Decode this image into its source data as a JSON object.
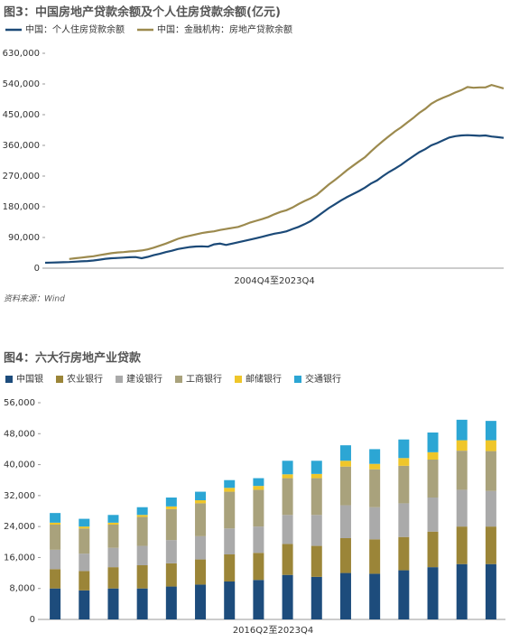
{
  "chart_data": [
    {
      "type": "line",
      "title": "图3：中国房地产贷款余额及个人住房贷款余额(亿元)",
      "x_label": "2004Q4至2023Q4",
      "source": "资料来源：Wind",
      "categories": [
        null,
        null,
        null,
        null,
        null,
        null,
        null,
        null,
        null,
        null,
        null,
        null,
        null,
        null,
        null,
        null,
        null,
        null,
        null,
        null,
        null,
        null,
        null,
        null,
        null,
        null,
        null,
        null,
        null,
        null,
        null,
        null,
        null,
        null,
        null,
        null,
        null,
        null,
        null,
        null,
        null,
        null,
        null,
        null,
        null,
        null,
        null,
        null,
        null,
        null,
        null,
        null,
        null,
        null,
        null,
        null,
        null,
        null,
        null,
        null,
        null,
        null,
        null,
        null,
        null,
        null,
        null,
        null,
        null,
        null,
        null,
        null,
        null,
        null,
        null,
        null,
        null
      ],
      "series": [
        {
          "name": "中国：个人住房贷款余额",
          "color": "#1c4a78",
          "values": [
            16000,
            16500,
            17000,
            17500,
            18000,
            19000,
            20000,
            21000,
            22500,
            25000,
            27500,
            29000,
            30000,
            31000,
            32000,
            32500,
            29000,
            33000,
            38000,
            42000,
            47000,
            51000,
            56000,
            59000,
            62000,
            63500,
            64000,
            63000,
            70000,
            72000,
            68000,
            72000,
            76000,
            80000,
            84000,
            88000,
            92000,
            97000,
            101000,
            104000,
            108000,
            115000,
            121000,
            129000,
            138000,
            150000,
            163000,
            176000,
            187000,
            198000,
            208000,
            217000,
            226000,
            236000,
            248000,
            257000,
            270000,
            282000,
            292000,
            303000,
            316000,
            328000,
            340000,
            349000,
            360000,
            367000,
            375000,
            383000,
            387000,
            389000,
            390000,
            389000,
            388000,
            389000,
            386000,
            384000,
            382000
          ]
        },
        {
          "name": "中国：金融机构：房地产贷款余额",
          "color": "#9c8a4e",
          "values": [
            null,
            null,
            null,
            null,
            27000,
            29000,
            31000,
            33000,
            35000,
            38000,
            41000,
            44000,
            46000,
            47000,
            49000,
            50000,
            52000,
            55000,
            60000,
            66000,
            72000,
            79000,
            86000,
            91000,
            95000,
            99000,
            103000,
            106000,
            108000,
            112000,
            115000,
            118000,
            121000,
            127000,
            134000,
            139000,
            144000,
            150000,
            158000,
            165000,
            170000,
            178000,
            188000,
            197000,
            205000,
            215000,
            230000,
            245000,
            258000,
            272000,
            287000,
            300000,
            313000,
            325000,
            342000,
            358000,
            373000,
            387000,
            401000,
            413000,
            427000,
            440000,
            455000,
            467000,
            482000,
            492000,
            500000,
            507000,
            515000,
            522000,
            531000,
            529000,
            530000,
            530000,
            537000,
            532000,
            527000
          ]
        }
      ],
      "ylim": [
        0,
        630000
      ],
      "yticks": [
        0,
        {
          "value": 90000,
          "label": "90,000"
        },
        {
          "value": 180000,
          "label": "180,000"
        },
        {
          "value": 270000,
          "label": "270,000"
        },
        {
          "value": 360000,
          "label": "360,000"
        },
        {
          "value": 450000,
          "label": "450,000"
        },
        {
          "value": 540000,
          "label": "540,000"
        },
        {
          "value": 630000,
          "label": "630,000"
        }
      ]
    },
    {
      "type": "bar",
      "stacked": true,
      "title": "图4：六大行房地产业贷款",
      "x_label": "2016Q2至2023Q4",
      "categories": [
        null,
        null,
        null,
        null,
        null,
        null,
        null,
        null,
        null,
        null,
        null,
        null,
        null,
        null,
        null,
        null
      ],
      "series": [
        {
          "name": "中国银",
          "color": "#1d4c7c",
          "values": [
            8000,
            7500,
            8000,
            8000,
            8500,
            9000,
            9800,
            10200,
            11500,
            11000,
            12000,
            11800,
            12700,
            13500,
            14300,
            14300
          ]
        },
        {
          "name": "农业银行",
          "color": "#9b8538",
          "values": [
            5000,
            5000,
            5500,
            6000,
            6000,
            6500,
            7000,
            7000,
            8000,
            8000,
            9000,
            8900,
            8600,
            9200,
            9700,
            9700
          ]
        },
        {
          "name": "建设银行",
          "color": "#aaaaaa",
          "values": [
            5000,
            4500,
            5000,
            5000,
            6000,
            6000,
            6700,
            6800,
            7500,
            8000,
            8500,
            8300,
            8700,
            8800,
            9500,
            9200
          ]
        },
        {
          "name": "工商银行",
          "color": "#a9a27c",
          "values": [
            6500,
            6500,
            6000,
            7500,
            8000,
            8500,
            9500,
            9500,
            9500,
            9500,
            10000,
            9800,
            9700,
            9800,
            10100,
            10300
          ]
        },
        {
          "name": "邮储银行",
          "color": "#efc62a",
          "values": [
            500,
            500,
            500,
            500,
            700,
            800,
            1000,
            1000,
            1000,
            1100,
            1500,
            1400,
            2000,
            1900,
            2700,
            2800
          ]
        },
        {
          "name": "交通银行",
          "color": "#2ca6d4",
          "values": [
            2500,
            2000,
            2000,
            2000,
            2300,
            2200,
            2000,
            2000,
            3500,
            3400,
            4000,
            3800,
            4800,
            5100,
            5300,
            5000
          ]
        }
      ],
      "ylim": [
        0,
        56000
      ],
      "yticks": [
        0,
        {
          "value": 8000,
          "label": "8,000"
        },
        {
          "value": 16000,
          "label": "16,000"
        },
        {
          "value": 24000,
          "label": "24,000"
        },
        {
          "value": 32000,
          "label": "32,000"
        },
        {
          "value": 40000,
          "label": "40,000"
        },
        {
          "value": 48000,
          "label": "48,000"
        },
        {
          "value": 56000,
          "label": "56,000"
        }
      ]
    }
  ]
}
